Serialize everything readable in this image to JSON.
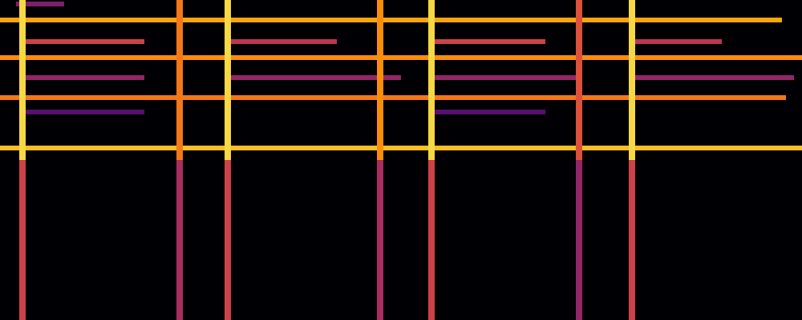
{
  "chart_data": {
    "type": "spectrogram",
    "tick_labels": false,
    "grid": false,
    "xlim": [
      0,
      1000
    ],
    "ylim": [
      0,
      400
    ],
    "color_range": [
      0,
      1
    ],
    "onsets": [
      {
        "x": 28,
        "upper": 0.9,
        "lower": 0.55
      },
      {
        "x": 224,
        "upper": 0.7,
        "lower": 0.45
      },
      {
        "x": 284,
        "upper": 0.9,
        "lower": 0.55
      },
      {
        "x": 474,
        "upper": 0.75,
        "lower": 0.45
      },
      {
        "x": 538,
        "upper": 0.9,
        "lower": 0.55
      },
      {
        "x": 722,
        "upper": 0.6,
        "lower": 0.4
      },
      {
        "x": 788,
        "upper": 0.9,
        "lower": 0.55
      }
    ],
    "bands": [
      {
        "y": 395,
        "x0": 20,
        "x1": 80,
        "level": 0.35
      },
      {
        "y": 375,
        "x0": 0,
        "x1": 975,
        "level": 0.8
      },
      {
        "y": 348,
        "x0": 28,
        "x1": 180,
        "level": 0.55
      },
      {
        "y": 348,
        "x0": 284,
        "x1": 420,
        "level": 0.5
      },
      {
        "y": 348,
        "x0": 538,
        "x1": 680,
        "level": 0.55
      },
      {
        "y": 348,
        "x0": 788,
        "x1": 900,
        "level": 0.5
      },
      {
        "y": 328,
        "x0": 0,
        "x1": 1000,
        "level": 0.75
      },
      {
        "y": 303,
        "x0": 28,
        "x1": 180,
        "level": 0.4
      },
      {
        "y": 303,
        "x0": 284,
        "x1": 500,
        "level": 0.4
      },
      {
        "y": 303,
        "x0": 538,
        "x1": 720,
        "level": 0.4
      },
      {
        "y": 303,
        "x0": 788,
        "x1": 990,
        "level": 0.4
      },
      {
        "y": 278,
        "x0": 0,
        "x1": 980,
        "level": 0.7
      },
      {
        "y": 260,
        "x0": 28,
        "x1": 180,
        "level": 0.25
      },
      {
        "y": 260,
        "x0": 538,
        "x1": 680,
        "level": 0.25
      },
      {
        "y": 215,
        "x0": 0,
        "x1": 1000,
        "level": 0.85
      }
    ]
  }
}
